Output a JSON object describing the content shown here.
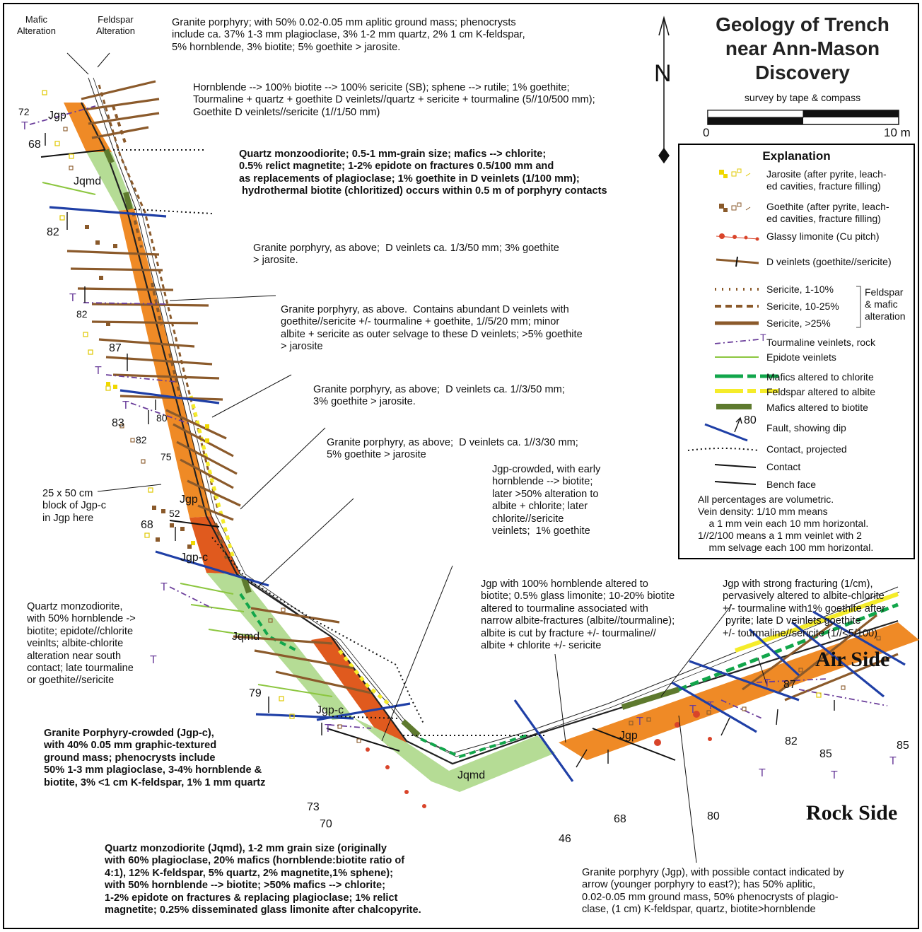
{
  "title": "Geology of Trench\nnear Ann-Mason\nDiscovery",
  "survey": "survey by tape & compass",
  "scale": {
    "labels": [
      "0",
      "5",
      "10 m"
    ]
  },
  "north_label": "N",
  "alteration_headers": {
    "mafic": "Mafic\nAlteration",
    "feldspar": "Feldspar\nAlteration"
  },
  "sides": {
    "air": "Air Side",
    "rock": "Rock Side"
  },
  "units": {
    "jgp_1": "Jgp",
    "jqmd_1": "Jqmd",
    "jgp_2": "Jgp",
    "jgpc_1": "Jgp-c",
    "jqmd_2": "Jqmd",
    "jgpc_2": "Jgp-c",
    "jqmd_3": "Jqmd",
    "jgp_3": "Jgp"
  },
  "dips": [
    "72",
    "68",
    "82",
    "82",
    "87",
    "83",
    "80",
    "82",
    "75",
    "52",
    "68",
    "79",
    "73",
    "70",
    "46",
    "68",
    "80",
    "87",
    "82",
    "85",
    "85"
  ],
  "tourmaline_marks": [
    "T",
    "T",
    "T",
    "T",
    "T",
    "T",
    "T",
    "T",
    "T",
    "T",
    "T",
    "T",
    "T",
    "T"
  ],
  "notes": {
    "n1": "Granite porphyry; with 50% 0.02-0.05 mm aplitic ground mass; phenocrysts\ninclude ca. 37% 1-3 mm plagioclase, 3% 1-2 mm quartz, 2% 1 cm K-feldspar,\n5% hornblende, 3% biotite; 5% goethite > jarosite.",
    "n2": "Hornblende --> 100% biotite --> 100% sericite (SB); sphene --> rutile; 1% goethite;\nTourmaline + quartz + goethite D veinlets//quartz + sericite + tourmaline (5//10/500 mm);\nGoethite D veinlets//sericite (1//1/50 mm)",
    "n3": "Quartz monzoodiorite; 0.5-1 mm-grain size; mafics --> chlorite;\n0.5% relict magnetite; 1-2% epidote on fractures 0.5/100 mm and\nas replacements of plagioclase; 1% goethite in D veinlets (1/100 mm);\n hydrothermal biotite (chloritized) occurs within 0.5 m of porphyry contacts",
    "n4": "Granite porphyry, as above;  D veinlets ca. 1/3/50 mm; 3% goethite\n> jarosite.",
    "n5": "Granite porphyry, as above.  Contains abundant D veinlets with\ngoethite//sericite +/- tourmaline + goethite, 1//5/20 mm; minor\nalbite + sericite as outer selvage to these D veinlets; >5% goethite\n> jarosite",
    "n6": "Granite porphyry, as above;  D veinlets ca. 1//3/50 mm;\n3% goethite > jarosite.",
    "n7": "Granite porphyry, as above;  D veinlets ca. 1//3/30 mm;\n5% goethite > jarosite",
    "n8": "Jgp-crowded, with early\nhornblende --> biotite;\nlater >50% alteration to\nalbite + chlorite; later\nchlorite//sericite\nveinlets;  1% goethite",
    "n9": "25 x 50 cm\nblock of Jgp-c\nin Jgp here",
    "n10": "Quartz monzodiorite,\nwith 50% hornblende ->\nbiotite; epidote//chlorite\nveinlts; albite-chlorite\nalteration near south\ncontact; late tourmaline\nor goethite//sericite",
    "n11": "Jgp with 100% hornblende altered to\nbiotite; 0.5% glass limonite; 10-20% biotite\naltered to tourmaline associated with\nnarrow albite-fractures (albite//tourmaline);\nalbite is cut by fracture +/- tourmaline//\nalbite + chlorite +/- sericite",
    "n12": "Jgp with strong fracturing (1/cm),\npervasively altered to albite-chlorite\n+/- tourmaline with1% goethite after\n pyrite; late D veinlets goethite\n+/- tourmaline//sericite (1//<5/100)",
    "n13": "Granite Porphyry-crowded (Jgp-c),\nwith 40% 0.05 mm graphic-textured\nground mass; phenocrysts include\n50% 1-3 mm plagioclase, 3-4% hornblende &\nbiotite, 3% <1 cm K-feldspar, 1% 1 mm quartz",
    "n14": "Quartz monzodiorite (Jqmd), 1-2 mm grain size (originally\nwith 60% plagioclase, 20% mafics (hornblende:biotite ratio of\n4:1), 12% K-feldspar, 5% quartz, 2% magnetite,1% sphene);\nwith 50% hornblende --> biotite; >50% mafics --> chlorite;\n1-2% epidote on fractures & replacing plagioclase; 1% relict\nmagnetite; 0.25% disseminated glass limonite after chalcopyrite.",
    "n15": "Granite porphyry (Jgp), with possible contact indicated by\narrow (younger porphyry to east?); has 50% aplitic,\n0.02-0.05 mm ground mass, 50% phenocrysts of plagio-\nclase, (1 cm) K-feldspar, quartz, biotite>hornblende"
  },
  "legend": {
    "title": "Explanation",
    "items": {
      "jarosite": "Jarosite (after pyrite, leach-\ned cavities, fracture filling)",
      "goethite": "Goethite (after pyrite, leach-\ned cavities, fracture filling)",
      "limonite": "Glassy limonite (Cu pitch)",
      "d_veinlets": "D veinlets (goethite//sericite)",
      "sericite_1": "Sericite, 1-10%",
      "sericite_2": "Sericite, 10-25%",
      "sericite_3": "Sericite, >25%",
      "alteration_group": "Feldspar\n& mafic\nalteration",
      "tourmaline": "Tourmaline veinlets, rock",
      "tourmaline_symbol": "T",
      "epidote": "Epidote veinlets",
      "chlorite": "Mafics altered to chlorite",
      "albite": "Feldspar altered to albite",
      "biotite": "Mafics altered to biotite",
      "fault": "Fault, showing dip",
      "fault_dip": "80",
      "contact_projected": "Contact, projected",
      "contact": "Contact",
      "bench": "Bench face"
    },
    "footnote": "All percentages are volumetric.\nVein density: 1/10 mm means\n    a 1 mm vein each 10 mm horizontal.\n1//2/100 means a 1 mm veinlet with 2\n    mm selvage each 100 mm horizontal."
  },
  "colors": {
    "granite_porphyry": "#ef8a26",
    "granite_porphyry_crowded": "#e05a1e",
    "quartz_monzodiorite": "#b5dc95",
    "sericite": "#8b5a2b",
    "fault": "#1f3fa6",
    "tourmaline": "#6a3d9a",
    "epidote": "#8cc63f",
    "chlorite": "#12a64b",
    "albite": "#f5ec2a",
    "biotite": "#5e7a2e",
    "limonite": "#d9442a",
    "goethite": "#8a5a2b",
    "jarosite": "#f0d800"
  }
}
